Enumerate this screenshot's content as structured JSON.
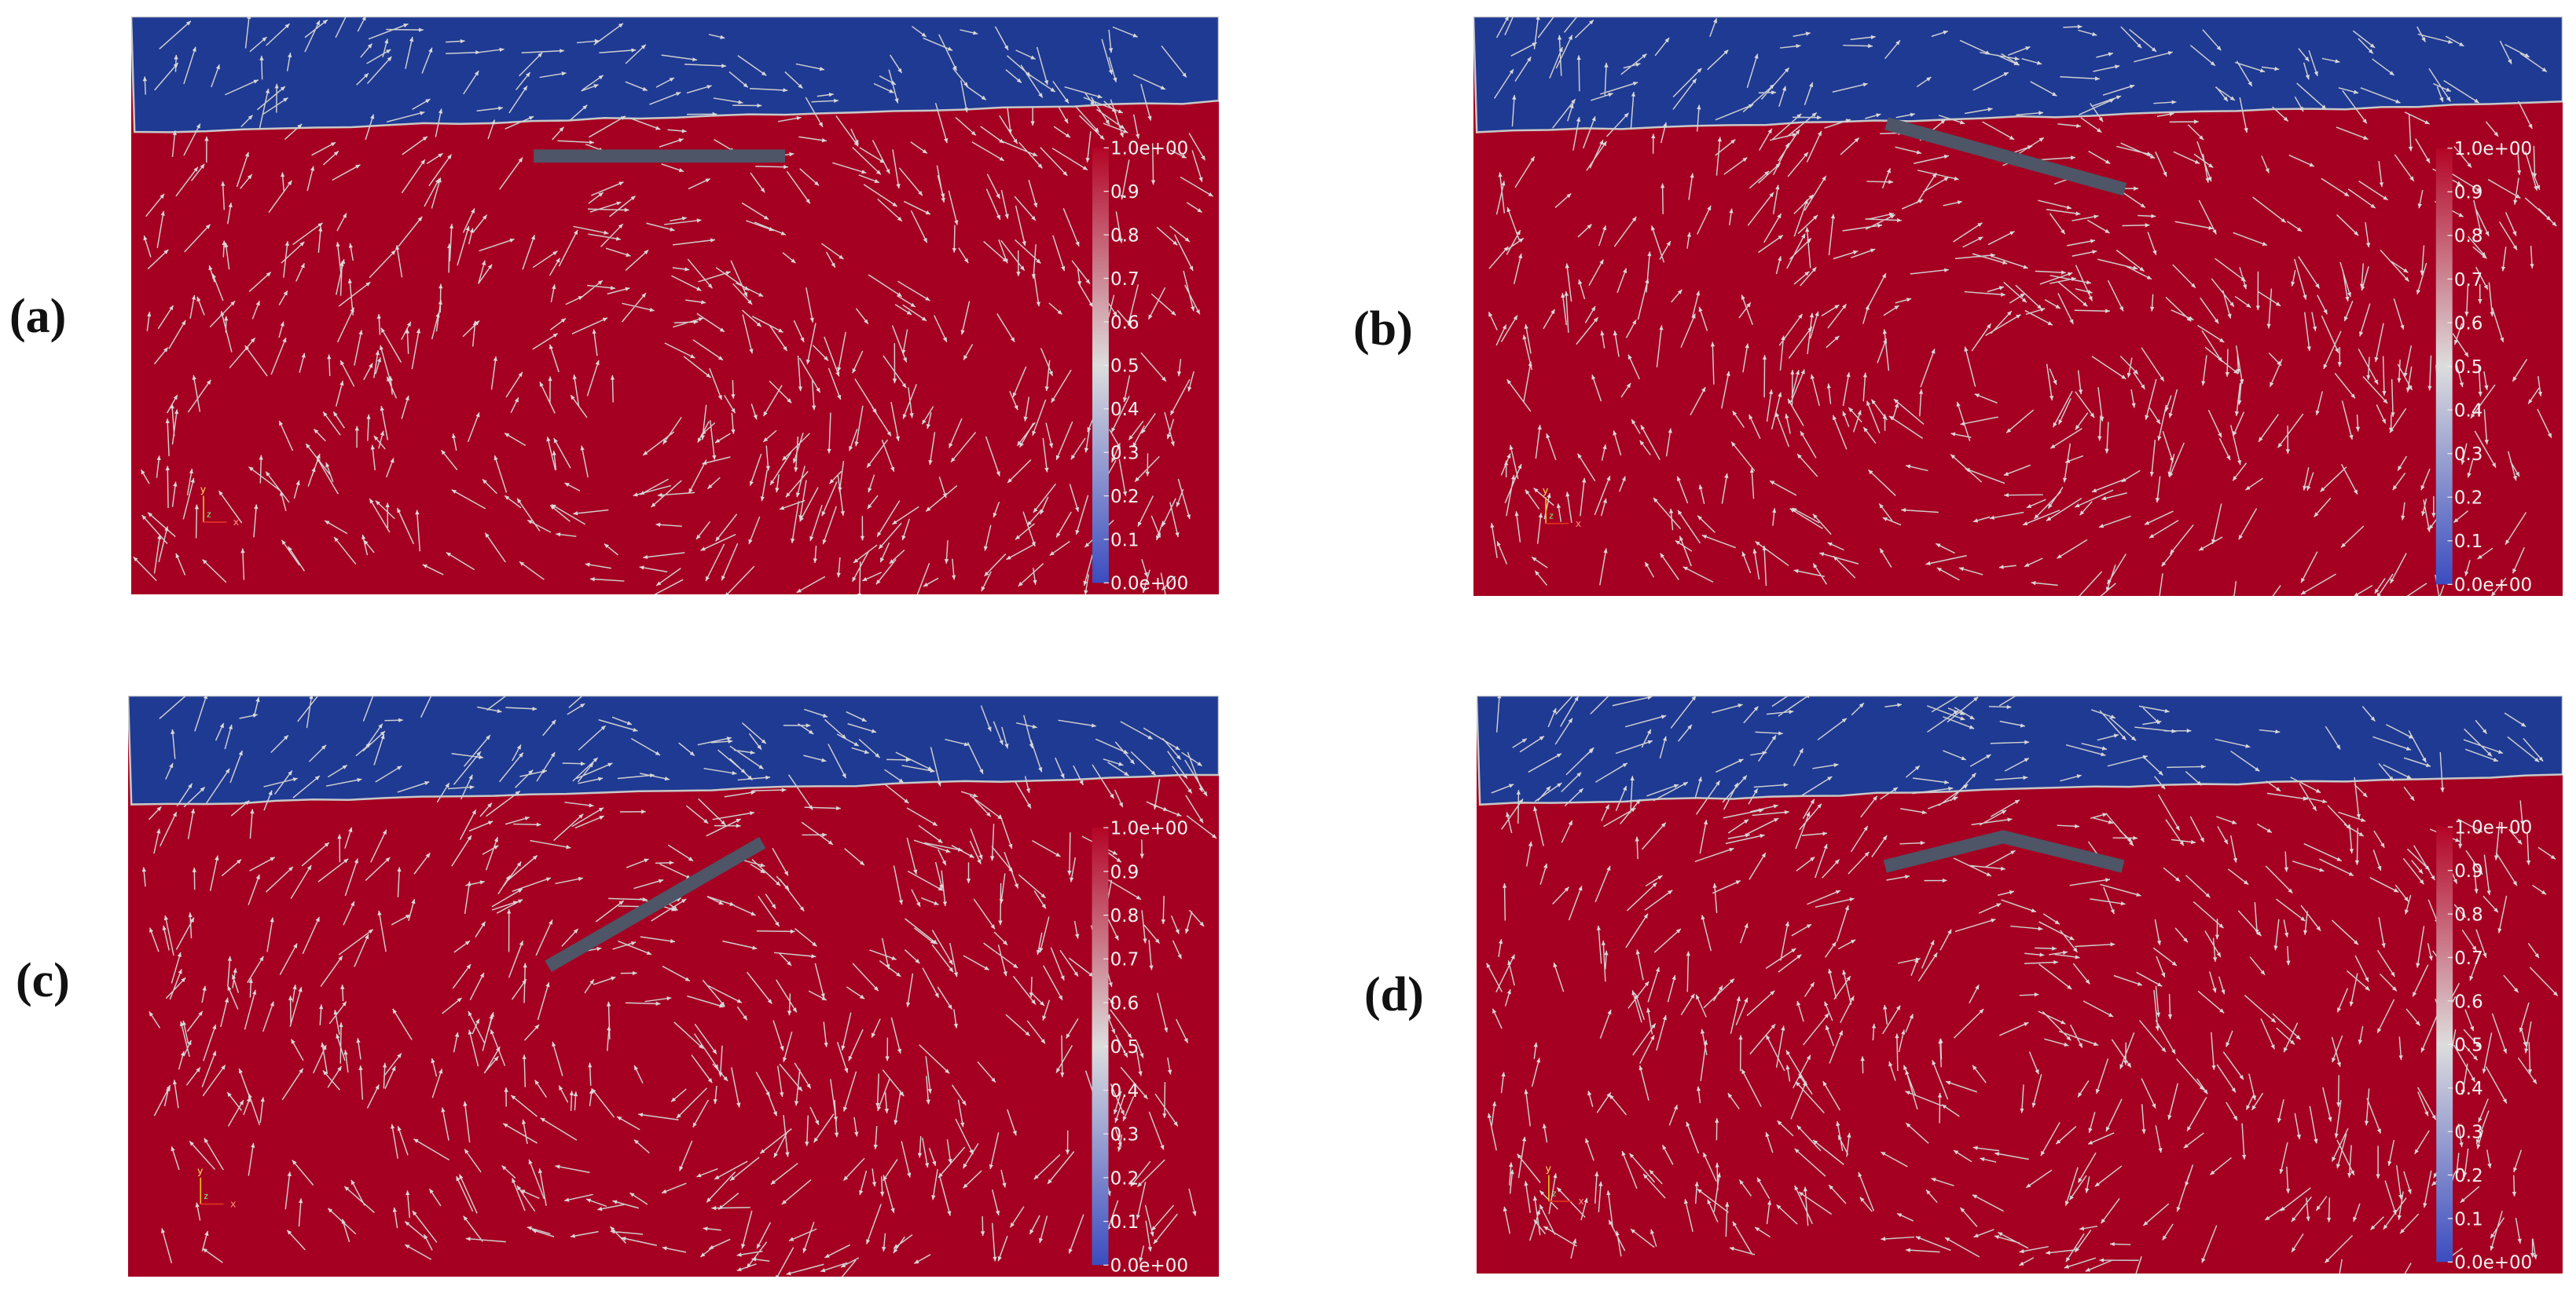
{
  "panels": [
    {
      "label": "(a)"
    },
    {
      "label": "(b)"
    },
    {
      "label": "(c)"
    },
    {
      "label": "(d)"
    }
  ],
  "colorbar": {
    "ticks": [
      {
        "value": 1,
        "label": "1.0e+00"
      },
      0.9,
      0.8,
      0.7,
      0.6,
      0.5,
      0.4,
      0.3,
      0.2,
      0.1,
      {
        "value": 0,
        "label": "0.0e+00"
      }
    ]
  },
  "triad": {
    "x": "x",
    "y": "y",
    "z": "z"
  }
}
